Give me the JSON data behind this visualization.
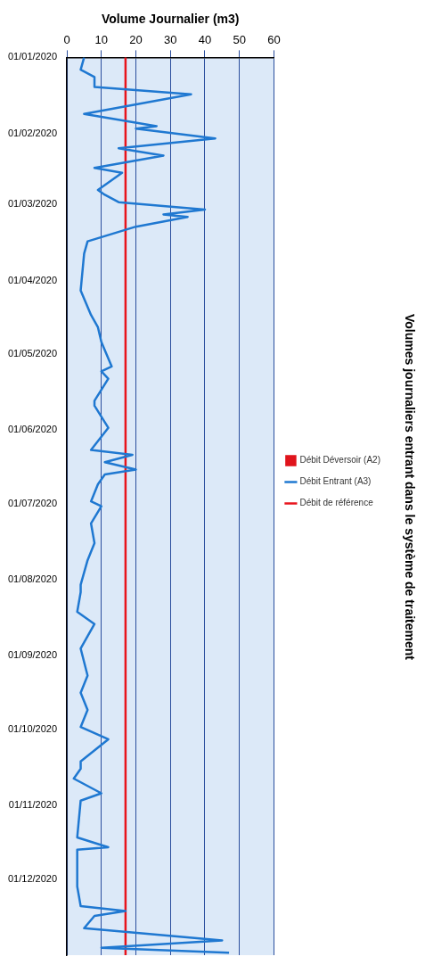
{
  "chart_data": {
    "type": "line",
    "title": "Volumes journaliers entrant dans le système de traitement",
    "xlabel": "Volume Journalier (m3)",
    "orientation": "horizontal",
    "xlim": [
      0,
      60
    ],
    "xticks": [
      0,
      10,
      20,
      30,
      40,
      50,
      60
    ],
    "ylim": [
      "2021-01-01",
      "2020-01-01"
    ],
    "yticks": [
      {
        "value": "2020-01-01",
        "label": "01/01/2020"
      },
      {
        "value": "2020-02-01",
        "label": "01/02/2020"
      },
      {
        "value": "2020-03-01",
        "label": "01/03/2020"
      },
      {
        "value": "2020-04-01",
        "label": "01/04/2020"
      },
      {
        "value": "2020-05-01",
        "label": "01/05/2020"
      },
      {
        "value": "2020-06-01",
        "label": "01/06/2020"
      },
      {
        "value": "2020-07-01",
        "label": "01/07/2020"
      },
      {
        "value": "2020-08-01",
        "label": "01/08/2020"
      },
      {
        "value": "2020-09-01",
        "label": "01/09/2020"
      },
      {
        "value": "2020-10-01",
        "label": "01/10/2020"
      },
      {
        "value": "2020-11-01",
        "label": "01/11/2020"
      },
      {
        "value": "2020-12-01",
        "label": "01/12/2020"
      }
    ],
    "grid": "x",
    "legend": "right",
    "marker": "none",
    "series": [
      {
        "name": "Débit Déversoir (A2)",
        "type": "bar",
        "color": "#e0141c"
      },
      {
        "name": "Débit Entrant (A3)",
        "type": "line",
        "color": "#1f78d1",
        "x": [
          "2020-01-01",
          "2020-01-06",
          "2020-01-09",
          "2020-01-13",
          "2020-01-16",
          "2020-01-24",
          "2020-01-29",
          "2020-01-30",
          "2020-02-03",
          "2020-02-07",
          "2020-02-10",
          "2020-02-15",
          "2020-02-17",
          "2020-02-24",
          "2020-02-26",
          "2020-02-29",
          "2020-03-03",
          "2020-03-05",
          "2020-03-06",
          "2020-03-10",
          "2020-03-16",
          "2020-03-21",
          "2020-04-05",
          "2020-04-15",
          "2020-04-20",
          "2020-04-26",
          "2020-05-06",
          "2020-05-08",
          "2020-05-11",
          "2020-05-20",
          "2020-05-22",
          "2020-05-31",
          "2020-06-09",
          "2020-06-11",
          "2020-06-14",
          "2020-06-17",
          "2020-06-19",
          "2020-06-23",
          "2020-06-30",
          "2020-07-02",
          "2020-07-09",
          "2020-07-17",
          "2020-07-24",
          "2020-08-03",
          "2020-08-06",
          "2020-08-14",
          "2020-08-19",
          "2020-08-29",
          "2020-09-09",
          "2020-09-16",
          "2020-09-23",
          "2020-09-30",
          "2020-10-05",
          "2020-10-14",
          "2020-10-17",
          "2020-10-21",
          "2020-10-27",
          "2020-10-30",
          "2020-11-14",
          "2020-11-18",
          "2020-11-19",
          "2020-12-04",
          "2020-12-12",
          "2020-12-14",
          "2020-12-16",
          "2020-12-21",
          "2020-12-26",
          "2020-12-29",
          "2020-12-31"
        ],
        "values": [
          5,
          4,
          8,
          8,
          36,
          5,
          26,
          20,
          43,
          15,
          28,
          8,
          16,
          9,
          11,
          15,
          40,
          28,
          35,
          20,
          6,
          5,
          4,
          7,
          9,
          10,
          13,
          10,
          12,
          8,
          8,
          12,
          7,
          19,
          11,
          20,
          11,
          9,
          7,
          10,
          7,
          8,
          6,
          4,
          4,
          3,
          8,
          4,
          6,
          4,
          6,
          4,
          12,
          4,
          4,
          2,
          10,
          4,
          3,
          12,
          3,
          3,
          4,
          17,
          8,
          5,
          45,
          10,
          47
        ]
      },
      {
        "name": "Débit de référence",
        "type": "line",
        "color": "#e8141c",
        "x": [
          "2020-01-01",
          "2021-01-01"
        ],
        "values": [
          17,
          17
        ]
      }
    ]
  }
}
